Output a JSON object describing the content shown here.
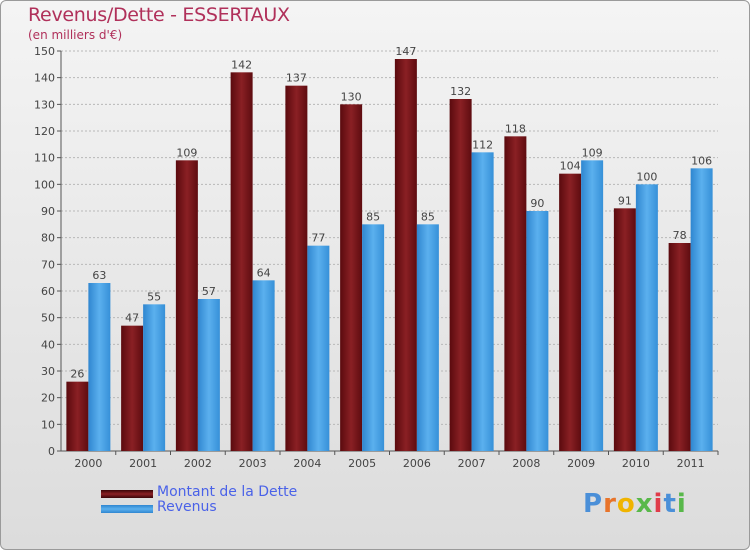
{
  "header": {
    "title": "Revenus/Dette - ESSERTAUX",
    "subtitle": "(en milliers d'€)"
  },
  "legend": {
    "items": [
      {
        "label": "Montant de la Dette",
        "color": "#7a1418"
      },
      {
        "label": "Revenus",
        "color": "#4aa3e8"
      }
    ]
  },
  "logo": {
    "letters": [
      "P",
      "r",
      "o",
      "x",
      "i",
      "t",
      "i"
    ],
    "colors": [
      "#4a8fd8",
      "#e8742a",
      "#f0b400",
      "#58b84a",
      "#e03c4a",
      "#4a8fd8",
      "#58b84a"
    ]
  },
  "chart_data": {
    "type": "bar",
    "title": "Revenus/Dette - ESSERTAUX",
    "subtitle": "(en milliers d'€)",
    "xlabel": "",
    "ylabel": "",
    "categories": [
      "2000",
      "2001",
      "2002",
      "2003",
      "2004",
      "2005",
      "2006",
      "2007",
      "2008",
      "2009",
      "2010",
      "2011"
    ],
    "series": [
      {
        "name": "Montant de la Dette",
        "color": "#7a1418",
        "values": [
          26,
          47,
          109,
          142,
          137,
          130,
          147,
          132,
          118,
          104,
          91,
          78
        ]
      },
      {
        "name": "Revenus",
        "color": "#4aa3e8",
        "values": [
          63,
          55,
          57,
          64,
          77,
          85,
          85,
          112,
          90,
          109,
          100,
          106
        ]
      }
    ],
    "ylim": [
      0,
      150
    ],
    "yticks": [
      0,
      10,
      20,
      30,
      40,
      50,
      60,
      70,
      80,
      90,
      100,
      110,
      120,
      130,
      140,
      150
    ],
    "grid": true,
    "legend_position": "bottom-left"
  }
}
